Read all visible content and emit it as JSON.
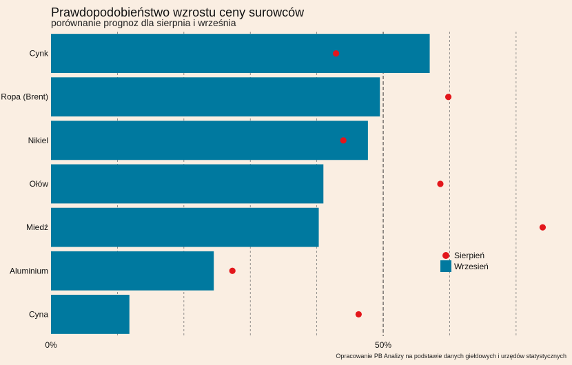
{
  "chart_data": {
    "type": "bar",
    "orientation": "horizontal",
    "title": "Prawdopodobieństwo wzrostu ceny surowców",
    "subtitle": "porównanie prognoz dla sierpnia i września",
    "source": "Opracowanie PB Analizy na podstawie danych giełdowych i urzędów statystycznych",
    "categories": [
      "Cynk",
      "Ropa (Brent)",
      "Nikiel",
      "Ołów",
      "Miedź",
      "Aluminium",
      "Cyna"
    ],
    "series": [
      {
        "name": "Wrzesień",
        "kind": "bar",
        "color": "#00799f",
        "values": [
          57,
          49.5,
          47.7,
          41,
          40.3,
          24.5,
          11.8
        ]
      },
      {
        "name": "Sierpień",
        "kind": "point",
        "color": "#e3161b",
        "values": [
          42.9,
          59.8,
          44,
          58.6,
          74,
          27.3,
          46.3
        ]
      }
    ],
    "xlim": [
      0,
      78
    ],
    "x_ticks": [
      {
        "value": 0,
        "label": "0%"
      },
      {
        "value": 50,
        "label": "50%"
      }
    ],
    "grid_values": [
      10,
      20,
      30,
      40,
      50,
      60,
      70
    ],
    "legend_position": "right"
  }
}
